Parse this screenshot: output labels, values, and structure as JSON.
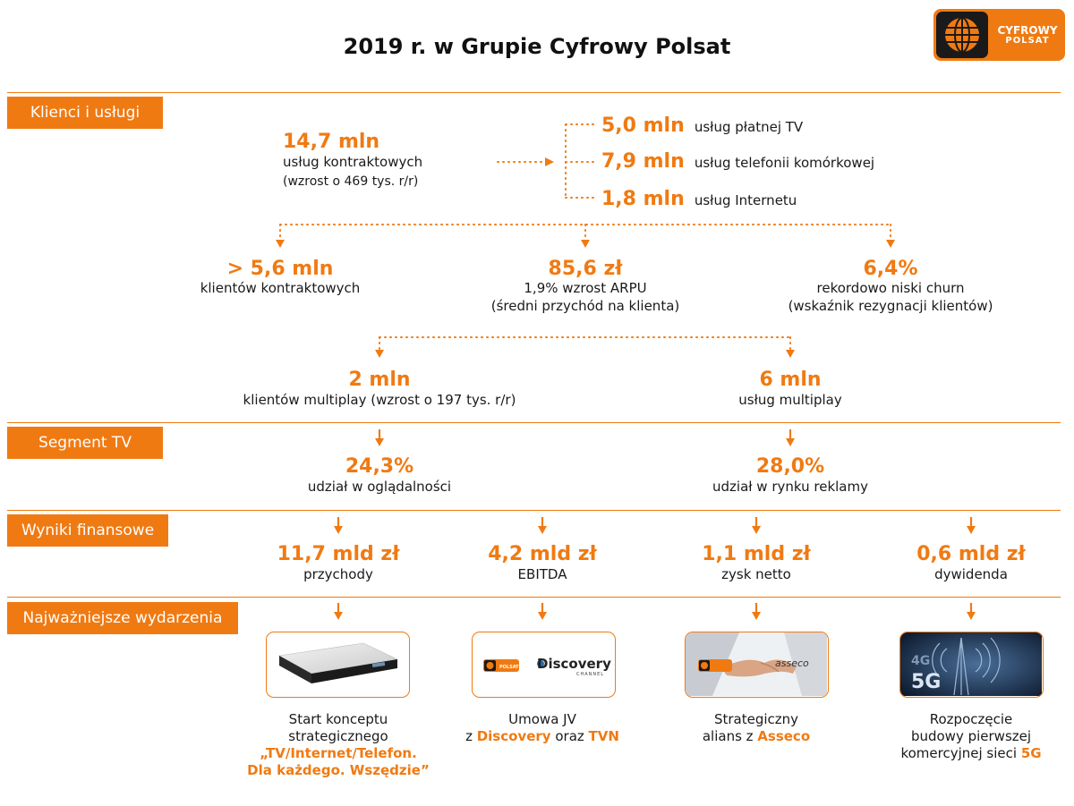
{
  "header": {
    "title": "2019 r. w Grupie Cyfrowy Polsat"
  },
  "logo": {
    "line1": "CYFROWY",
    "line2": "POLSAT",
    "brand_color": "#f07a12"
  },
  "sections": {
    "clients": "Klienci i usługi",
    "tv": "Segment TV",
    "finance": "Wyniki finansowe",
    "events": "Najważniejsze wydarzenia"
  },
  "contract": {
    "value": "14,7 mln",
    "label": "usług kontraktowych",
    "note": "(wzrost o 469 tys. r/r)"
  },
  "services": [
    {
      "value": "5,0 mln",
      "label": "usług płatnej TV"
    },
    {
      "value": "7,9 mln",
      "label": "usług telefonii komórkowej"
    },
    {
      "value": "1,8 mln",
      "label": "usług Internetu"
    }
  ],
  "kpi": [
    {
      "value": "> 5,6 mln",
      "line1": "klientów kontraktowych",
      "line2": ""
    },
    {
      "value": "85,6 zł",
      "line1": "1,9% wzrost ARPU",
      "line2": "(średni przychód na klienta)"
    },
    {
      "value": "6,4%",
      "line1": "rekordowo niski churn",
      "line2": "(wskaźnik rezygnacji klientów)"
    }
  ],
  "multiplay": [
    {
      "value": "2 mln",
      "label": "klientów multiplay (wzrost o 197 tys. r/r)"
    },
    {
      "value": "6 mln",
      "label": "usług multiplay"
    }
  ],
  "tv": [
    {
      "value": "24,3%",
      "label": "udział w oglądalności"
    },
    {
      "value": "28,0%",
      "label": "udział w rynku reklamy"
    }
  ],
  "finance": [
    {
      "value": "11,7 mld zł",
      "label": "przychody"
    },
    {
      "value": "4,2 mld zł",
      "label": "EBITDA"
    },
    {
      "value": "1,1 mld zł",
      "label": "zysk netto"
    },
    {
      "value": "0,6 mld zł",
      "label": "dywidenda"
    }
  ],
  "events": [
    {
      "plain": [
        "Start konceptu",
        "strategicznego"
      ],
      "bold": [
        "„TV/Internet/Telefon.",
        "Dla każdego. Wszędzie”"
      ]
    },
    {
      "l1": "Umowa JV",
      "l2a": "z ",
      "b1": "Discovery",
      "l2b": " oraz ",
      "b2": "TVN"
    },
    {
      "l1": "Strategiczny",
      "l2a": "alians z ",
      "b1": "Asseco"
    },
    {
      "l1": "Rozpoczęcie",
      "l2": "budowy pierwszej",
      "l3a": "komercyjnej sieci ",
      "b1": "5G"
    }
  ],
  "cards": {
    "discovery": "Discovery",
    "discovery_sub": "CHANNEL",
    "asseco": "asseco",
    "polsat_mini": "POLSAT",
    "g4": "4G",
    "g5": "5G"
  }
}
